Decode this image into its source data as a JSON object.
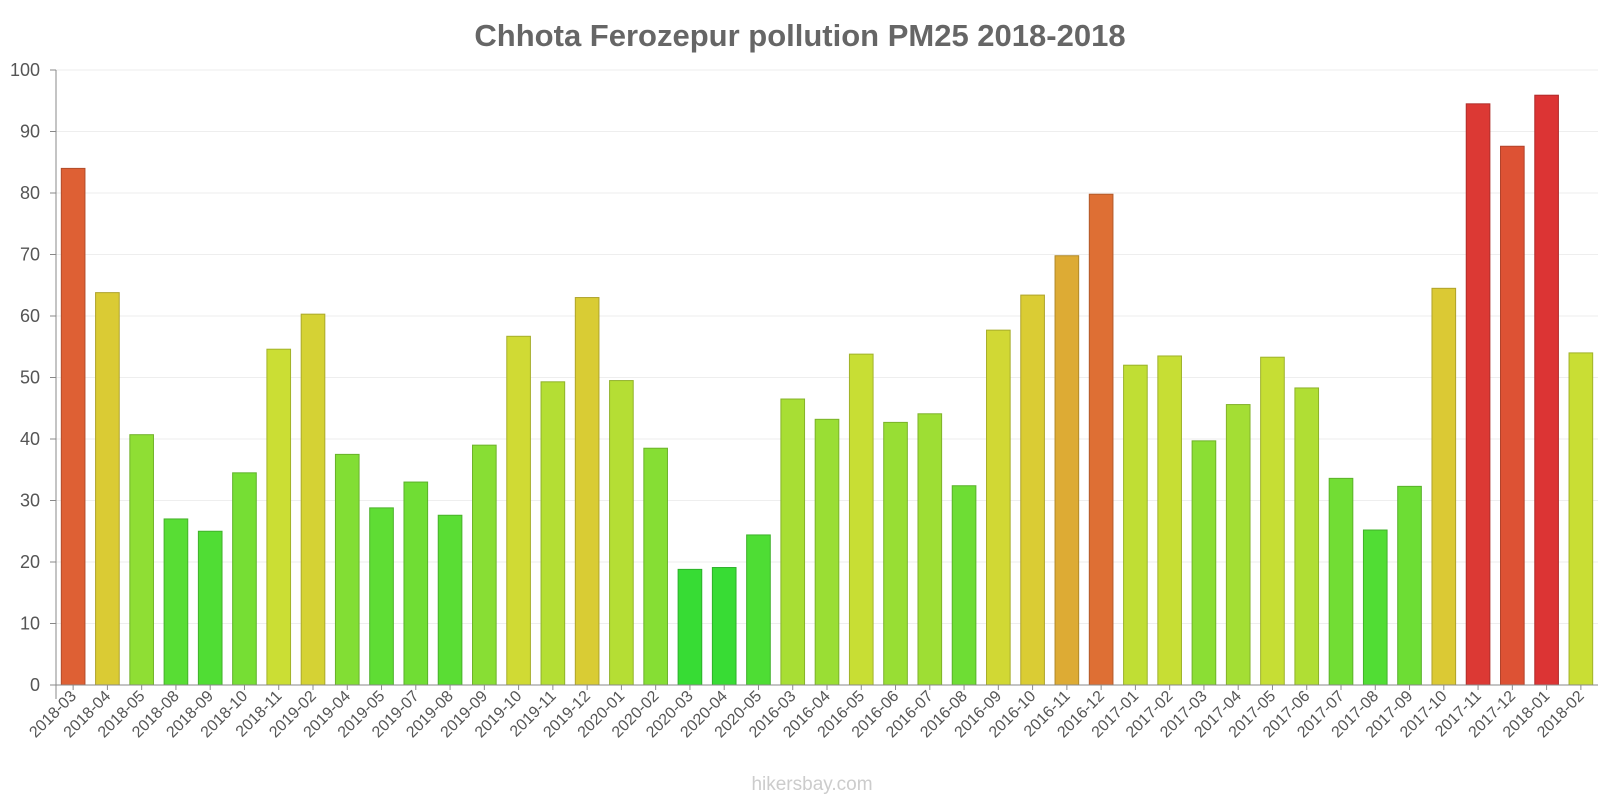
{
  "chart_data": {
    "type": "bar",
    "title": "Chhota Ferozepur pollution PM25 2018-2018",
    "xlabel": "",
    "ylabel": "",
    "ylim": [
      0,
      100
    ],
    "yticks": [
      0,
      10,
      20,
      30,
      40,
      50,
      60,
      70,
      80,
      90,
      100
    ],
    "grid": true,
    "categories": [
      "2018-03",
      "2018-04",
      "2018-05",
      "2018-08",
      "2018-09",
      "2018-10",
      "2018-11",
      "2019-02",
      "2019-04",
      "2019-05",
      "2019-07",
      "2019-08",
      "2019-09",
      "2019-10",
      "2019-11",
      "2019-12",
      "2020-01",
      "2020-02",
      "2020-03",
      "2020-04",
      "2020-05",
      "2016-03",
      "2016-04",
      "2016-05",
      "2016-06",
      "2016-07",
      "2016-08",
      "2016-09",
      "2016-10",
      "2016-11",
      "2016-12",
      "2017-01",
      "2017-02",
      "2017-03",
      "2017-04",
      "2017-05",
      "2017-06",
      "2017-07",
      "2017-08",
      "2017-09",
      "2017-10",
      "2017-11",
      "2017-12",
      "2018-01",
      "2018-02"
    ],
    "values": [
      84,
      63.8,
      40.7,
      27,
      25,
      34.5,
      54.6,
      60.3,
      37.5,
      28.8,
      33,
      27.6,
      39,
      56.7,
      49.3,
      63,
      49.5,
      38.5,
      18.8,
      19.1,
      24.4,
      46.5,
      43.2,
      53.8,
      42.7,
      44.1,
      32.4,
      57.7,
      63.4,
      69.8,
      79.8,
      52,
      53.5,
      39.7,
      45.6,
      53.3,
      48.3,
      33.6,
      25.2,
      32.3,
      64.5,
      94.5,
      87.6,
      95.9,
      54
    ]
  },
  "watermark": "hikersbay.com",
  "colors": {
    "title": "#666666",
    "tick_text": "#555555",
    "watermark": "#cccccc",
    "grid": "#eeeeee",
    "axis": "#888888"
  }
}
